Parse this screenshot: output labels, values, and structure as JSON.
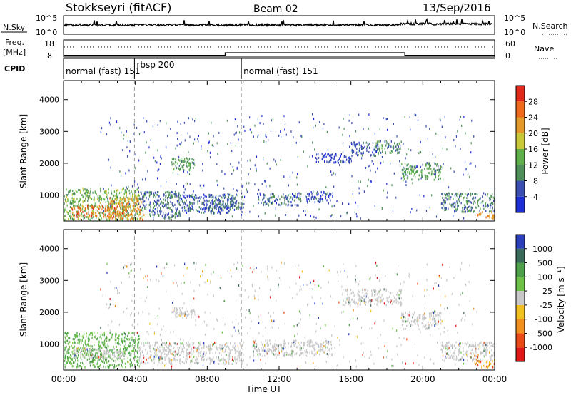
{
  "header": {
    "station": "Stokkseyri (fitACF)",
    "beam": "Beam 02",
    "date": "13/Sep/2016"
  },
  "colors": {
    "power_scale": [
      "#1f2fd6",
      "#3a4fb0",
      "#4f8f5a",
      "#5fb04a",
      "#c9c83a",
      "#e39a2c",
      "#ee6a1e",
      "#e02a1a"
    ],
    "velocity_scale": [
      "#2a3fb8",
      "#3a6a5a",
      "#4ea04a",
      "#6ec24a",
      "#c8c8c8",
      "#f0c020",
      "#f09020",
      "#e84a1a",
      "#e01818"
    ],
    "ground_scatter": "#c8c8c8"
  },
  "top_panels": {
    "nsky_label": "N.Sky",
    "nsky_ticks": [
      "10^5",
      "10^0"
    ],
    "nsearch_label": "N.Search",
    "nsearch_ticks": [
      "10^5",
      "10^0"
    ],
    "freq_label": "Freq.",
    "freq_unit": "[MHz]",
    "freq_ticks": [
      "18",
      "8"
    ],
    "nave_label": "Nave",
    "nave_ticks": [
      "60",
      "0"
    ],
    "cpid_label": "CPID",
    "cpid_segments": [
      {
        "label": "normal (fast) 151",
        "start_hr": 0.0,
        "end_hr": 3.95
      },
      {
        "label": "rbsp 200",
        "start_hr": 3.95,
        "end_hr": 9.9
      },
      {
        "label": "normal (fast) 151",
        "start_hr": 9.9,
        "end_hr": 24.0
      }
    ],
    "freq_step_hr": [
      9.0,
      19.0
    ],
    "freq_levels_mhz": [
      9.0,
      10.5,
      9.0
    ]
  },
  "panels": [
    {
      "name": "power",
      "ylabel": "Slant Range [km]",
      "cbar_label": "Power [dB]",
      "cbar_ticks": [
        "28",
        "24",
        "20",
        "16",
        "12",
        "8",
        "4"
      ]
    },
    {
      "name": "velocity",
      "ylabel": "Slant Range [km]",
      "cbar_label": "Velocity [m s⁻¹]",
      "cbar_ticks": [
        "1000",
        "500",
        "100",
        "25",
        "-25",
        "-100",
        "-500",
        "-1000"
      ]
    }
  ],
  "xaxis": {
    "label": "Time UT",
    "ticks": [
      "00:00",
      "04:00",
      "08:00",
      "12:00",
      "16:00",
      "20:00",
      "00:00"
    ]
  },
  "chart_data": {
    "type": "heatmap",
    "title": "Stokkseyri (fitACF)  Beam 02  13/Sep/2016",
    "xlabel": "Time UT",
    "ylabel": "Slant Range [km]",
    "xlim_hours": [
      0,
      24
    ],
    "ylim_km": [
      180,
      4600
    ],
    "yticks_km": [
      1000,
      2000,
      3000,
      4000
    ],
    "power_scale_db": [
      0,
      32
    ],
    "velocity_ticks": [
      1000,
      500,
      100,
      25,
      -25,
      -100,
      -500,
      -1000
    ],
    "dashed_markers_hr": [
      3.95,
      9.9
    ],
    "power_regions": [
      {
        "t0": 0.0,
        "t1": 4.2,
        "r0": 200,
        "r1": 1200,
        "level": 14
      },
      {
        "t0": 0.4,
        "t1": 3.5,
        "r0": 300,
        "r1": 650,
        "level": 26
      },
      {
        "t0": 2.5,
        "t1": 4.5,
        "r0": 200,
        "r1": 900,
        "level": 22
      },
      {
        "t0": 4.2,
        "t1": 6.5,
        "r0": 250,
        "r1": 1100,
        "level": 8
      },
      {
        "t0": 6.0,
        "t1": 7.3,
        "r0": 1750,
        "r1": 2150,
        "level": 12
      },
      {
        "t0": 6.5,
        "t1": 9.5,
        "r0": 400,
        "r1": 1000,
        "level": 6
      },
      {
        "t0": 8.0,
        "t1": 10.0,
        "r0": 550,
        "r1": 1000,
        "level": 8
      },
      {
        "t0": 10.8,
        "t1": 13.2,
        "r0": 650,
        "r1": 1050,
        "level": 7
      },
      {
        "t0": 13.5,
        "t1": 15.0,
        "r0": 750,
        "r1": 1100,
        "level": 5
      },
      {
        "t0": 14.0,
        "t1": 16.0,
        "r0": 2000,
        "r1": 2300,
        "level": 4
      },
      {
        "t0": 16.0,
        "t1": 17.5,
        "r0": 2200,
        "r1": 2650,
        "level": 6
      },
      {
        "t0": 17.3,
        "t1": 18.8,
        "r0": 2300,
        "r1": 2700,
        "level": 9
      },
      {
        "t0": 18.8,
        "t1": 21.0,
        "r0": 1450,
        "r1": 2000,
        "level": 11
      },
      {
        "t0": 21.0,
        "t1": 24.0,
        "r0": 450,
        "r1": 1050,
        "level": 9
      },
      {
        "t0": 22.8,
        "t1": 24.0,
        "r0": 250,
        "r1": 450,
        "level": 24
      }
    ],
    "velocity_regions": [
      {
        "t0": 0.0,
        "t1": 4.2,
        "r0": 250,
        "r1": 1350,
        "level": "100"
      },
      {
        "t0": 0.5,
        "t1": 3.5,
        "r0": 500,
        "r1": 850,
        "level": "ground"
      },
      {
        "t0": 4.2,
        "t1": 10.0,
        "r0": 350,
        "r1": 1050,
        "level": "ground"
      },
      {
        "t0": 6.0,
        "t1": 7.3,
        "r0": 1800,
        "r1": 2150,
        "level": "ground"
      },
      {
        "t0": 10.5,
        "t1": 15.0,
        "r0": 600,
        "r1": 1100,
        "level": "ground"
      },
      {
        "t0": 15.5,
        "t1": 18.8,
        "r0": 2200,
        "r1": 2700,
        "level": "ground"
      },
      {
        "t0": 18.8,
        "t1": 21.0,
        "r0": 1450,
        "r1": 2000,
        "level": "ground"
      },
      {
        "t0": 21.0,
        "t1": 24.0,
        "r0": 450,
        "r1": 1050,
        "level": "ground"
      },
      {
        "t0": 22.8,
        "t1": 24.0,
        "r0": 250,
        "r1": 500,
        "level": "-100"
      }
    ]
  }
}
